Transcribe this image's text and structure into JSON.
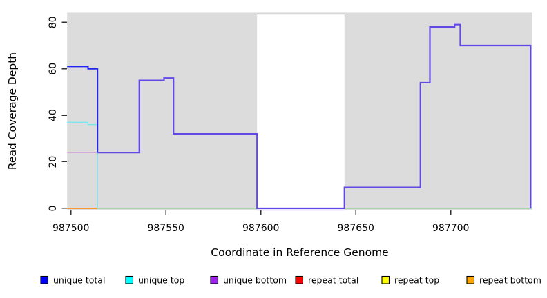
{
  "chart_data": {
    "type": "line",
    "subtype": "step-coverage",
    "title": "",
    "xlabel": "Coordinate in Reference Genome",
    "ylabel": "Read Coverage Depth",
    "xlim": [
      987498,
      987743
    ],
    "ylim": [
      0,
      84
    ],
    "x_ticks": [
      987500,
      987550,
      987600,
      987650,
      987700
    ],
    "y_ticks": [
      0,
      20,
      40,
      60,
      80
    ],
    "grid": false,
    "plot_bg_color": "#dcdcdc",
    "masked_region": {
      "x_start": 987598,
      "x_end": 987644,
      "color": "#ffffff",
      "top_border_color": "#a9a9a9"
    },
    "legend_position": "bottom",
    "legend": [
      {
        "label": "unique total",
        "color": "#0000ff"
      },
      {
        "label": "unique top",
        "color": "#00ffff"
      },
      {
        "label": "unique bottom",
        "color": "#a020f0"
      },
      {
        "label": "repeat total",
        "color": "#ff0000"
      },
      {
        "label": "repeat top",
        "color": "#ffff00"
      },
      {
        "label": "repeat bottom",
        "color": "#ffa500"
      }
    ],
    "series": [
      {
        "name": "unique total",
        "color": "#0000ff",
        "steps": [
          [
            987498,
            61
          ],
          [
            987509,
            60
          ],
          [
            987514,
            24
          ],
          [
            987536,
            55
          ],
          [
            987549,
            56
          ],
          [
            987554,
            32
          ],
          [
            987598,
            0
          ],
          [
            987644,
            9
          ],
          [
            987684,
            54
          ],
          [
            987689,
            78
          ],
          [
            987702,
            79
          ],
          [
            987705,
            70
          ],
          [
            987742,
            0
          ]
        ]
      },
      {
        "name": "unique top",
        "color": "#00ffff",
        "steps": [
          [
            987498,
            37
          ],
          [
            987509,
            36
          ],
          [
            987514,
            0
          ],
          [
            987743,
            0
          ]
        ]
      },
      {
        "name": "unique bottom",
        "color": "#a020f0",
        "steps": [
          [
            987498,
            24
          ],
          [
            987514,
            24
          ],
          [
            987536,
            55
          ],
          [
            987549,
            56
          ],
          [
            987554,
            32
          ],
          [
            987598,
            0
          ],
          [
            987644,
            9
          ],
          [
            987684,
            54
          ],
          [
            987689,
            78
          ],
          [
            987702,
            79
          ],
          [
            987705,
            70
          ],
          [
            987742,
            0
          ]
        ]
      },
      {
        "name": "repeat total",
        "color": "#ff0000",
        "steps": [
          [
            987498,
            0
          ],
          [
            987743,
            0
          ]
        ]
      },
      {
        "name": "repeat top",
        "color": "#ffff00",
        "steps": [
          [
            987498,
            0
          ],
          [
            987743,
            0
          ]
        ]
      },
      {
        "name": "repeat bottom",
        "color": "#ffa500",
        "steps": [
          [
            987498,
            0
          ],
          [
            987743,
            0
          ]
        ]
      }
    ],
    "render_segments": [
      {
        "name": "zero-line-repeat-bottom",
        "color": "#ff8c1a",
        "width": 1.7,
        "steps": [
          [
            987498,
            0
          ],
          [
            987514,
            0
          ]
        ]
      },
      {
        "name": "zero-line-blend-green",
        "color": "#8ecf8e",
        "width": 1.3,
        "steps": [
          [
            987514,
            0
          ],
          [
            987743,
            0
          ]
        ]
      },
      {
        "name": "unique-bottom-gap-artifact",
        "color": "#d9c9f5",
        "width": 1,
        "steps": [
          [
            987598,
            -0.8
          ],
          [
            987644,
            -0.8
          ]
        ]
      },
      {
        "name": "unique-bottom-solo",
        "color": "#cf9ae2",
        "width": 1.2,
        "steps": [
          [
            987498,
            24
          ],
          [
            987514,
            24
          ]
        ]
      },
      {
        "name": "unique-top-solo",
        "color": "#7ae6ec",
        "width": 1.4,
        "steps": [
          [
            987498,
            37
          ],
          [
            987509,
            36
          ],
          [
            987514,
            0
          ]
        ]
      },
      {
        "name": "unique-total-plus-bottom-merged",
        "color": "#6348e6",
        "width": 2.2,
        "steps": [
          [
            987514,
            24
          ],
          [
            987536,
            55
          ],
          [
            987549,
            56
          ],
          [
            987554,
            32
          ],
          [
            987598,
            0
          ],
          [
            987644,
            9
          ],
          [
            987684,
            54
          ],
          [
            987689,
            78
          ],
          [
            987702,
            79
          ],
          [
            987705,
            70
          ],
          [
            987742,
            0
          ]
        ]
      },
      {
        "name": "unique-total-solo",
        "color": "#2323ef",
        "width": 2,
        "steps": [
          [
            987498,
            61
          ],
          [
            987509,
            60
          ],
          [
            987514,
            24
          ]
        ]
      }
    ]
  }
}
